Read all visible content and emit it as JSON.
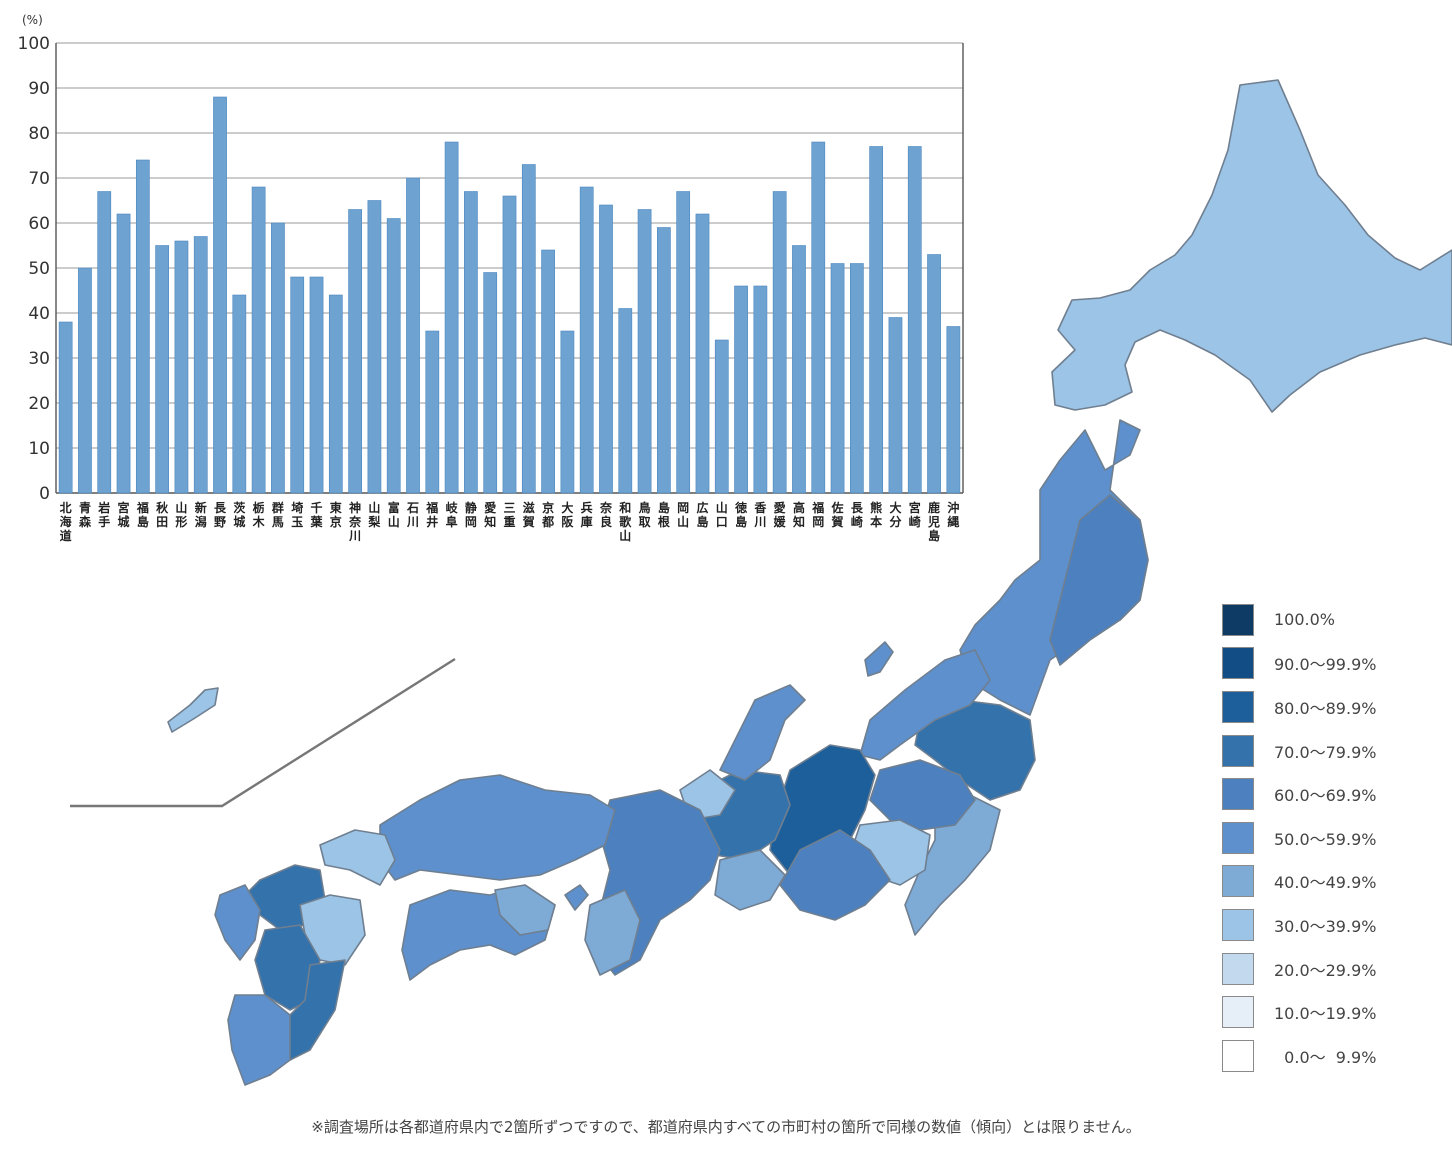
{
  "chart_data": {
    "type": "bar",
    "ylabel": "(%)",
    "ylim": [
      0,
      100
    ],
    "yticks": [
      0,
      10,
      20,
      30,
      40,
      50,
      60,
      70,
      80,
      90,
      100
    ],
    "grid": true,
    "bar_color": "#6ea3d1",
    "categories": [
      "北海道",
      "青森",
      "岩手",
      "宮城",
      "福島",
      "秋田",
      "山形",
      "新潟",
      "長野",
      "茨城",
      "栃木",
      "群馬",
      "埼玉",
      "千葉",
      "東京",
      "神奈川",
      "山梨",
      "富山",
      "石川",
      "福井",
      "岐阜",
      "静岡",
      "愛知",
      "三重",
      "滋賀",
      "京都",
      "大阪",
      "兵庫",
      "奈良",
      "和歌山",
      "鳥取",
      "島根",
      "岡山",
      "広島",
      "山口",
      "徳島",
      "香川",
      "愛媛",
      "高知",
      "福岡",
      "佐賀",
      "長崎",
      "熊本",
      "大分",
      "宮崎",
      "鹿児島",
      "沖縄"
    ],
    "values": [
      38,
      50,
      67,
      62,
      74,
      55,
      56,
      57,
      88,
      44,
      68,
      60,
      48,
      48,
      44,
      63,
      65,
      61,
      70,
      36,
      78,
      67,
      49,
      66,
      73,
      54,
      36,
      68,
      64,
      41,
      63,
      59,
      67,
      62,
      34,
      46,
      46,
      67,
      55,
      78,
      51,
      51,
      77,
      39,
      77,
      53,
      37
    ]
  },
  "legend": {
    "items": [
      {
        "label": "100.0%",
        "color": "#0e3a66"
      },
      {
        "label": "90.0～99.9%",
        "color": "#134d85"
      },
      {
        "label": "80.0～89.9%",
        "color": "#1c5f9a"
      },
      {
        "label": "70.0～79.9%",
        "color": "#3472ab"
      },
      {
        "label": "60.0～69.9%",
        "color": "#4c80bf"
      },
      {
        "label": "50.0～59.9%",
        "color": "#5d90cc"
      },
      {
        "label": "40.0～49.9%",
        "color": "#7eaad6"
      },
      {
        "label": "30.0～39.9%",
        "color": "#9cc4e6"
      },
      {
        "label": "20.0～29.9%",
        "color": "#c3daee"
      },
      {
        "label": "10.0～19.9%",
        "color": "#e6eef7"
      },
      {
        "label": "  0.0～  9.9%",
        "color": "#ffffff"
      }
    ]
  },
  "note": "※調査場所は各都道府県内で2箇所ずつですので、都道府県内すべての市町村の箇所で同様の数値（傾向）とは限りません。"
}
